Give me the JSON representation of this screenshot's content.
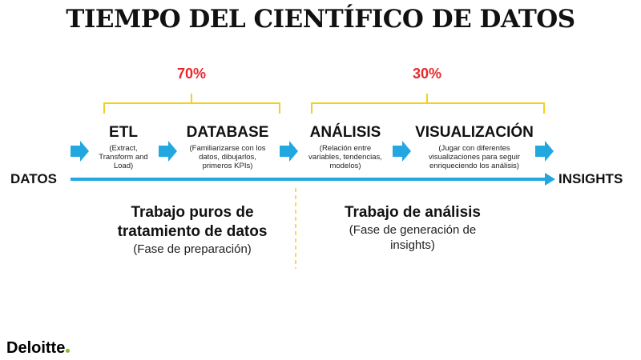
{
  "title": "TIEMPO DEL CIENTÍFICO DE DATOS",
  "colors": {
    "percent": "#e8282b",
    "bracket": "#f2d01e",
    "arrow": "#22a7e0",
    "divider": "#f2d01e",
    "logo_dot": "#86bc25"
  },
  "groups": [
    {
      "percent": "70%",
      "title_line1": "Trabajo puros de",
      "title_line2": "tratamiento de datos",
      "subtitle": "(Fase de preparación)"
    },
    {
      "percent": "30%",
      "title_line1": "Trabajo de análisis",
      "subtitle_line1": "(Fase de generación de",
      "subtitle_line2": "insights)"
    }
  ],
  "stages": [
    {
      "title": "ETL",
      "desc_line1": "(Extract,",
      "desc_line2": "Transform and",
      "desc_line3": "Load)"
    },
    {
      "title": "DATABASE",
      "desc_line1": "(Familiarizarse con los",
      "desc_line2": "datos, dibujarlos,",
      "desc_line3": "primeros KPIs)"
    },
    {
      "title": "ANÁLISIS",
      "desc_line1": "(Relación entre",
      "desc_line2": "variables, tendencias,",
      "desc_line3": "modelos)"
    },
    {
      "title": "VISUALIZACIÓN",
      "desc_line1": "(Jugar con diferentes",
      "desc_line2": "visualizaciones para seguir",
      "desc_line3": "enriqueciendo los análisis)"
    }
  ],
  "flow": {
    "start_label": "DATOS",
    "end_label": "INSIGHTS"
  },
  "logo": {
    "text": "Deloitte"
  }
}
